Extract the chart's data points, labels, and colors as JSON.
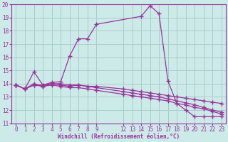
{
  "title": "",
  "xlabel": "Windchill (Refroidissement éolien,°C)",
  "ylabel": "",
  "bg_color": "#cceae8",
  "grid_color": "#aacccc",
  "line_color": "#993399",
  "tick_color": "#993399",
  "xlim": [
    -0.5,
    23.5
  ],
  "ylim": [
    11,
    20
  ],
  "xticks": [
    0,
    1,
    2,
    3,
    4,
    5,
    6,
    7,
    8,
    9,
    12,
    13,
    14,
    15,
    16,
    17,
    18,
    19,
    20,
    21,
    22,
    23
  ],
  "yticks": [
    11,
    12,
    13,
    14,
    15,
    16,
    17,
    18,
    19,
    20
  ],
  "curve1_x": [
    0,
    1,
    2,
    3,
    4,
    5,
    6,
    7,
    8,
    9,
    14,
    15,
    16,
    17,
    18,
    19,
    20,
    21,
    22,
    23
  ],
  "curve1_y": [
    13.9,
    13.6,
    14.9,
    13.9,
    14.1,
    14.15,
    16.1,
    17.4,
    17.4,
    18.5,
    19.1,
    19.9,
    19.3,
    14.2,
    12.5,
    12.0,
    11.5,
    11.5,
    11.5,
    11.5
  ],
  "curve2_x": [
    0,
    1,
    2,
    3,
    4,
    5,
    6,
    7,
    8,
    9,
    12,
    13,
    14,
    15,
    16,
    17,
    18,
    19,
    20,
    21,
    22,
    23
  ],
  "curve2_y": [
    13.9,
    13.6,
    13.9,
    13.9,
    14.0,
    14.0,
    13.9,
    13.9,
    13.8,
    13.8,
    13.6,
    13.5,
    13.4,
    13.3,
    13.2,
    13.1,
    13.0,
    12.9,
    12.8,
    12.7,
    12.6,
    12.5
  ],
  "curve3_x": [
    0,
    1,
    2,
    3,
    4,
    5,
    6,
    7,
    8,
    9,
    12,
    13,
    14,
    15,
    16,
    17,
    18,
    19,
    20,
    21,
    22,
    23
  ],
  "curve3_y": [
    13.9,
    13.6,
    13.9,
    13.8,
    13.9,
    13.8,
    13.7,
    13.7,
    13.6,
    13.5,
    13.2,
    13.1,
    13.0,
    12.9,
    12.8,
    12.7,
    12.5,
    12.4,
    12.2,
    12.1,
    11.9,
    11.7
  ],
  "curve4_x": [
    0,
    1,
    2,
    3,
    4,
    5,
    6,
    7,
    8,
    9,
    12,
    13,
    14,
    15,
    16,
    17,
    18,
    19,
    20,
    21,
    22,
    23
  ],
  "curve4_y": [
    13.9,
    13.6,
    14.0,
    13.8,
    14.0,
    13.9,
    13.8,
    13.9,
    13.8,
    13.7,
    13.4,
    13.3,
    13.2,
    13.1,
    13.0,
    12.85,
    12.7,
    12.55,
    12.4,
    12.2,
    12.0,
    11.85
  ]
}
